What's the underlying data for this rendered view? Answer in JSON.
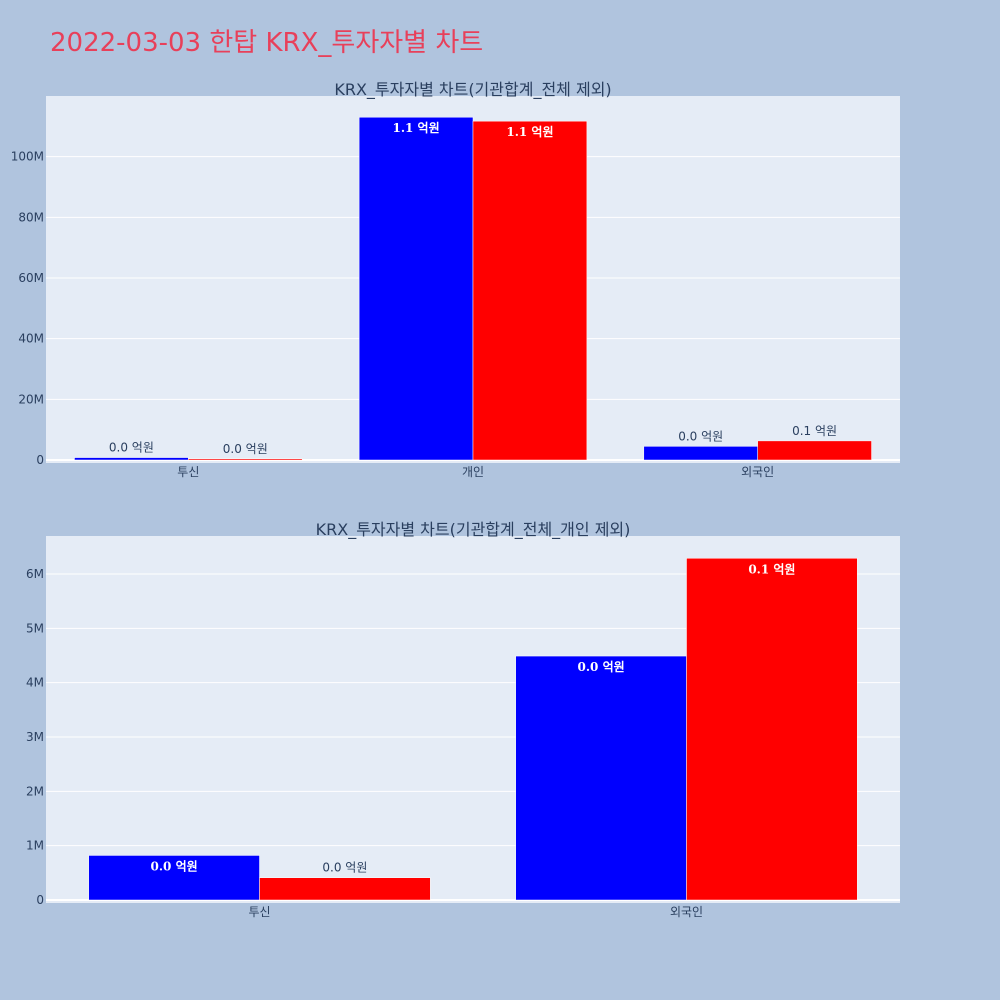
{
  "page": {
    "title": "2022-03-03 한탑 KRX_투자자별 차트"
  },
  "colors": {
    "buy": "#0000ff",
    "sell": "#ff0000",
    "plot_bg": "#e5ecf6",
    "page_bg": "#b0c4de",
    "title": "#e8405a"
  },
  "chart_data": [
    {
      "type": "bar",
      "title": "KRX_투자자별 차트(기관합계_전체 제외)",
      "categories": [
        "투신",
        "개인",
        "외국인"
      ],
      "ylim": [
        0,
        120000000
      ],
      "yticks": [
        0,
        20000000,
        40000000,
        60000000,
        80000000,
        100000000
      ],
      "ytick_labels": [
        "0",
        "20M",
        "40M",
        "60M",
        "80M",
        "100M"
      ],
      "grid": true,
      "series": [
        {
          "color": "#0000ff",
          "values": [
            800000,
            113000000,
            4500000
          ],
          "labels": [
            "0.0 억원",
            "1.1 억원",
            "0.0 억원"
          ]
        },
        {
          "color": "#ff0000",
          "values": [
            400000,
            111700000,
            6300000
          ],
          "labels": [
            "0.0 억원",
            "1.1 억원",
            "0.1 억원"
          ]
        }
      ]
    },
    {
      "type": "bar",
      "title": "KRX_투자자별 차트(기관합계_전체_개인 제외)",
      "categories": [
        "투신",
        "외국인"
      ],
      "ylim": [
        0,
        6700000
      ],
      "yticks": [
        0,
        1000000,
        2000000,
        3000000,
        4000000,
        5000000,
        6000000
      ],
      "ytick_labels": [
        "0",
        "1M",
        "2M",
        "3M",
        "4M",
        "5M",
        "6M"
      ],
      "grid": true,
      "series": [
        {
          "color": "#0000ff",
          "values": [
            820000,
            4490000
          ],
          "labels": [
            "0.0 억원",
            "0.0 억원"
          ]
        },
        {
          "color": "#ff0000",
          "values": [
            410000,
            6290000
          ],
          "labels": [
            "0.0 억원",
            "0.1 억원"
          ]
        }
      ]
    }
  ]
}
